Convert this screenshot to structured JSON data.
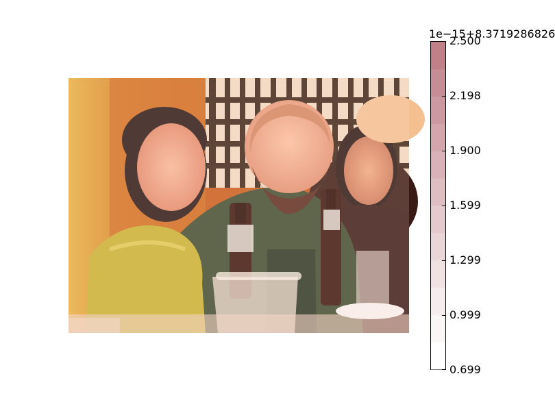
{
  "chart_data": {
    "type": "heatmap",
    "colorbar": {
      "offset_label": "1e−15+8.3719286826",
      "ticks": [
        "0.699",
        "0.999",
        "1.299",
        "1.599",
        "1.900",
        "2.198",
        "2.500"
      ],
      "tick_values": [
        0.699,
        0.999,
        1.299,
        1.599,
        1.9,
        2.198,
        2.5
      ],
      "range": [
        0.699,
        2.5
      ],
      "levels": 12,
      "color_low": "#ffffff",
      "color_high": "#c08088",
      "colormap": "reds (semi-transparent)"
    }
  },
  "image": {
    "content": "photo-of-people-at-table",
    "colors": {
      "warm_bg": "#d06a2a",
      "yellow_wall": "#e0a030",
      "green_shirt": "#3a4a2a",
      "skin": "#f0a080",
      "bottle": "#4a1a10",
      "lattice": "#2a1a10"
    }
  }
}
